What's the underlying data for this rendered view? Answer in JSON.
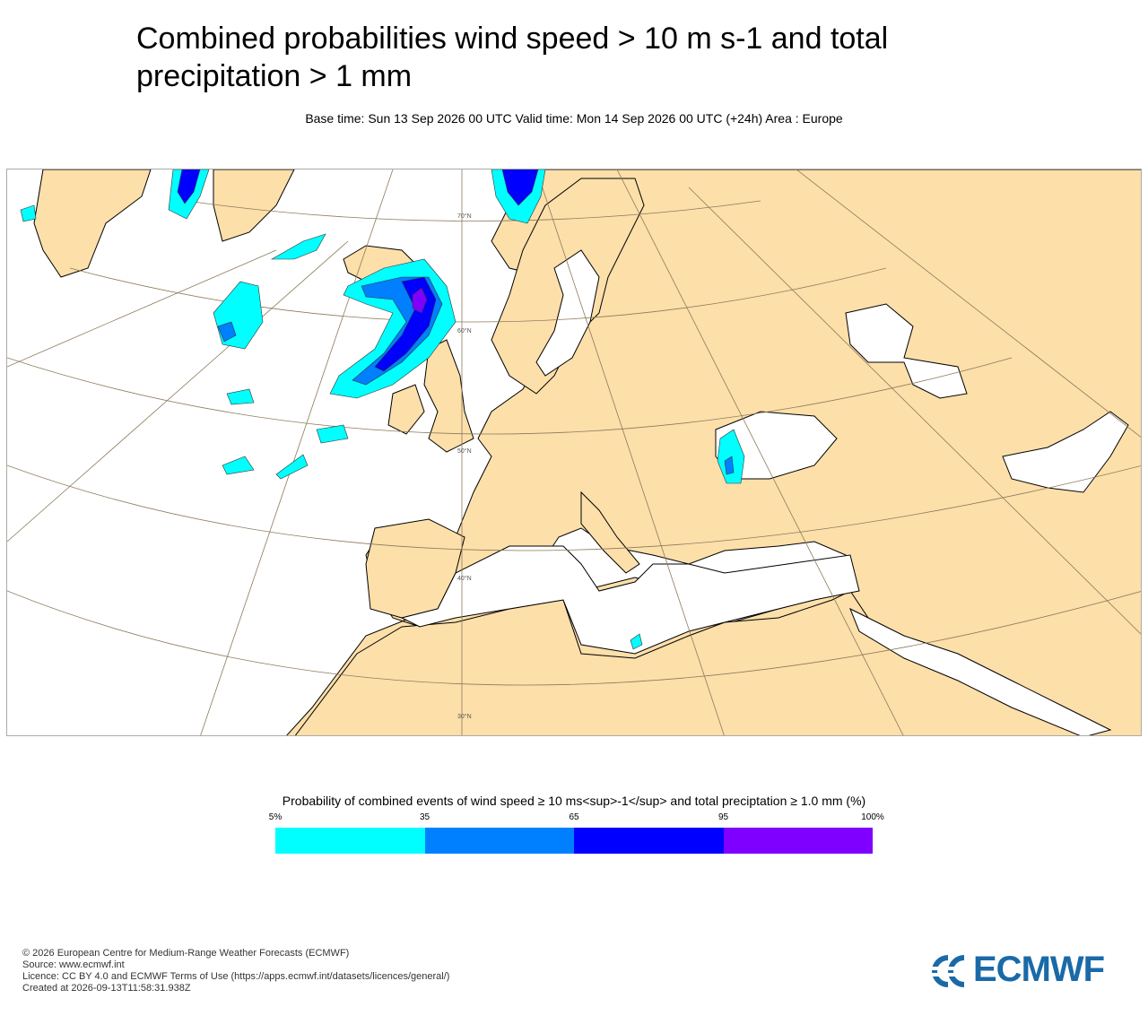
{
  "header": {
    "title_line1": "Combined probabilities wind speed > 10 m s-1 and total",
    "title_line2": "precipitation > 1 mm",
    "subtitle": "Base time: Sun 13 Sep 2026 00 UTC Valid time: Mon 14 Sep 2026 00 UTC (+24h) Area : Europe"
  },
  "map": {
    "area": "Europe",
    "land_color": "#fddfaa",
    "sea_color": "#ffffff",
    "coast_color": "#000000",
    "grid_color": "#8c7a5a",
    "lat_labels": [
      "70°N",
      "60°N",
      "50°N",
      "40°N",
      "30°N"
    ]
  },
  "legend": {
    "title": "Probability of combined events of wind speed ≥ 10 ms<sup>-1</sup> and total preciptation ≥ 1.0 mm (%)",
    "ticks": [
      "5%",
      "35",
      "65",
      "95",
      "100%"
    ],
    "colors": [
      "#00ffff",
      "#0080ff",
      "#0000ff",
      "#8000ff"
    ]
  },
  "footer": {
    "line1": "© 2026 European Centre for Medium-Range Weather Forecasts (ECMWF)",
    "line2": "Source: www.ecmwf.int",
    "line3": "Licence: CC BY 4.0 and ECMWF Terms of Use (https://apps.ecmwf.int/datasets/licences/general/)",
    "line4": "Created at 2026-09-13T11:58:31.938Z"
  },
  "logo": {
    "text": "ECMWF",
    "color": "#1a6aa8"
  }
}
